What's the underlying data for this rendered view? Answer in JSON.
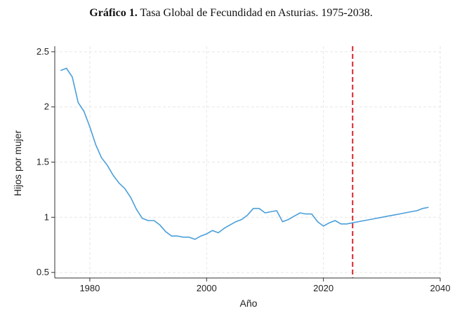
{
  "caption": {
    "prefix": "Gráfico 1.",
    "text": "Tasa Global de Fecundidad en Asturias. 1975-2038."
  },
  "chart_data": {
    "type": "line",
    "title": "Gráfico 1. Tasa Global de Fecundidad en Asturias. 1975-2038.",
    "xlabel": "Año",
    "ylabel": "Hijos por mujer",
    "xlim": [
      1974,
      2040
    ],
    "ylim": [
      0.45,
      2.55
    ],
    "xticks": [
      1980,
      2000,
      2020,
      2040
    ],
    "yticks": [
      0.5,
      1,
      1.5,
      2,
      2.5
    ],
    "xtick_labels": [
      "1980",
      "2000",
      "2020",
      "2040"
    ],
    "ytick_labels": [
      "0.5",
      "1",
      "1.5",
      "2",
      "2.5"
    ],
    "grid": true,
    "line_color": "#4a9fd9",
    "vline": {
      "x": 2025,
      "color": "#d62728",
      "style": "dashed"
    },
    "series": [
      {
        "x": [
          1975,
          1976,
          1977,
          1978,
          1979,
          1980,
          1981,
          1982,
          1983,
          1984,
          1985,
          1986,
          1987,
          1988,
          1989,
          1990,
          1991,
          1992,
          1993,
          1994,
          1995,
          1996,
          1997,
          1998,
          1999,
          2000,
          2001,
          2002,
          2003,
          2004,
          2005,
          2006,
          2007,
          2008,
          2009,
          2010,
          2011,
          2012,
          2013,
          2014,
          2015,
          2016,
          2017,
          2018,
          2019,
          2020,
          2021,
          2022,
          2023,
          2024,
          2025,
          2026,
          2027,
          2028,
          2029,
          2030,
          2031,
          2032,
          2033,
          2034,
          2035,
          2036,
          2037,
          2038
        ],
        "values": [
          2.33,
          2.35,
          2.27,
          2.04,
          1.96,
          1.82,
          1.66,
          1.54,
          1.47,
          1.38,
          1.31,
          1.26,
          1.18,
          1.07,
          0.99,
          0.97,
          0.97,
          0.93,
          0.87,
          0.83,
          0.83,
          0.82,
          0.82,
          0.8,
          0.83,
          0.85,
          0.88,
          0.86,
          0.9,
          0.93,
          0.96,
          0.98,
          1.02,
          1.08,
          1.08,
          1.04,
          1.05,
          1.06,
          0.96,
          0.98,
          1.01,
          1.04,
          1.03,
          1.03,
          0.96,
          0.92,
          0.95,
          0.97,
          0.94,
          0.94,
          0.95,
          0.96,
          0.97,
          0.98,
          0.99,
          1.0,
          1.01,
          1.02,
          1.03,
          1.04,
          1.05,
          1.06,
          1.08,
          1.09
        ]
      }
    ]
  }
}
